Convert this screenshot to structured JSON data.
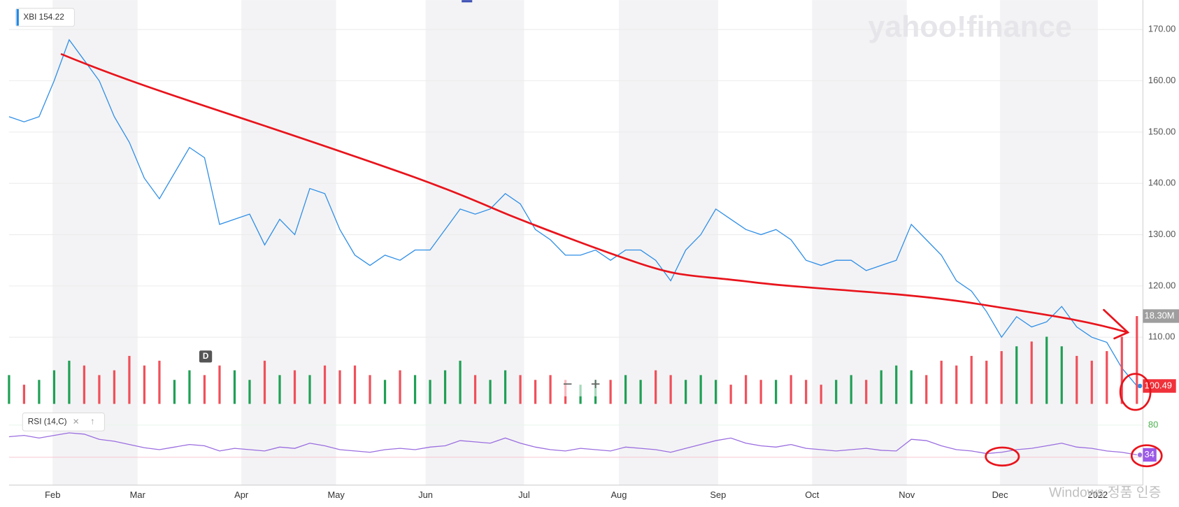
{
  "brand": "yahoo!finance",
  "os_watermark": "Windows 정품 인증",
  "controls": {
    "interval": "D",
    "zoom_out": "−",
    "zoom_in": "+"
  },
  "chart_data": [
    {
      "type": "line",
      "x": [
        0,
        1,
        2,
        3,
        4,
        5,
        6,
        7,
        8,
        9,
        10,
        11,
        12,
        13,
        14,
        15,
        16,
        17,
        18,
        19,
        20,
        21,
        22,
        23,
        24,
        25,
        26,
        27,
        28,
        29,
        30,
        31,
        32,
        33,
        34,
        35,
        36,
        37,
        38,
        39,
        40,
        41,
        42,
        43,
        44,
        45,
        46,
        47,
        48,
        49,
        50,
        51,
        52,
        53,
        54,
        55,
        56,
        57,
        58,
        59,
        60,
        61,
        62,
        63,
        64,
        65,
        66,
        67,
        68,
        69,
        70,
        71,
        72,
        73,
        74,
        75
      ],
      "series": [
        {
          "name": "XBI 154.22",
          "color": "#2e8ee6",
          "values": [
            153,
            152,
            153,
            160,
            168,
            164,
            160,
            153,
            148,
            141,
            137,
            142,
            147,
            145,
            132,
            133,
            134,
            128,
            133,
            130,
            139,
            138,
            131,
            126,
            124,
            126,
            125,
            127,
            127,
            131,
            135,
            134,
            135,
            138,
            136,
            131,
            129,
            126,
            126,
            127,
            125,
            127,
            127,
            125,
            121,
            127,
            130,
            135,
            133,
            131,
            130,
            131,
            129,
            125,
            124,
            125,
            125,
            123,
            124,
            125,
            132,
            129,
            126,
            121,
            119,
            115,
            110,
            114,
            112,
            113,
            116,
            112,
            110,
            109,
            104,
            100.49
          ]
        }
      ],
      "xlim": [
        0,
        75
      ],
      "xticks": [
        {
          "value": 2.9,
          "label": "Feb"
        },
        {
          "value": 8.55,
          "label": "Mar"
        },
        {
          "value": 15.45,
          "label": "Apr"
        },
        {
          "value": 21.75,
          "label": "May"
        },
        {
          "value": 27.7,
          "label": "Jun"
        },
        {
          "value": 34.25,
          "label": "Jul"
        },
        {
          "value": 40.55,
          "label": "Aug"
        },
        {
          "value": 47.15,
          "label": "Sep"
        },
        {
          "value": 53.4,
          "label": "Oct"
        },
        {
          "value": 59.7,
          "label": "Nov"
        },
        {
          "value": 65.9,
          "label": "Dec"
        },
        {
          "value": 72.4,
          "label": "2022"
        }
      ],
      "ylim": [
        97,
        175
      ],
      "yticks": [
        {
          "value": 110,
          "label": "110.00"
        },
        {
          "value": 120,
          "label": "120.00"
        },
        {
          "value": 130,
          "label": "130.00"
        },
        {
          "value": 140,
          "label": "140.00"
        },
        {
          "value": 150,
          "label": "150.00"
        },
        {
          "value": 160,
          "label": "160.00"
        },
        {
          "value": 170,
          "label": "170.00"
        }
      ],
      "grid": true
    },
    {
      "type": "bar",
      "values": [
        6,
        4,
        5,
        7,
        9,
        8,
        6,
        7,
        10,
        8,
        9,
        5,
        7,
        6,
        8,
        7,
        5,
        9,
        6,
        7,
        6,
        8,
        7,
        8,
        6,
        5,
        7,
        6,
        5,
        7,
        9,
        6,
        5,
        7,
        6,
        5,
        6,
        5,
        4,
        5,
        5,
        6,
        5,
        7,
        6,
        5,
        6,
        5,
        4,
        6,
        5,
        5,
        6,
        5,
        4,
        5,
        6,
        5,
        7,
        8,
        7,
        6,
        9,
        8,
        10,
        9,
        11,
        12,
        13,
        14,
        12,
        10,
        9,
        11,
        14,
        18.3
      ],
      "last_value_label": "18.30M",
      "up_color": "#1fa055",
      "down_color": "#f0505a",
      "ylim": [
        0,
        21
      ]
    },
    {
      "type": "line",
      "series": [
        {
          "name": "RSI (14,C)",
          "color": "#9b6ee0",
          "values": [
            62,
            64,
            60,
            64,
            68,
            66,
            58,
            55,
            50,
            45,
            42,
            46,
            50,
            48,
            40,
            44,
            42,
            40,
            46,
            44,
            52,
            48,
            42,
            40,
            38,
            42,
            44,
            42,
            46,
            48,
            56,
            54,
            52,
            60,
            52,
            46,
            42,
            40,
            44,
            42,
            40,
            46,
            44,
            42,
            38,
            44,
            50,
            56,
            60,
            52,
            48,
            46,
            50,
            44,
            42,
            40,
            42,
            44,
            41,
            40,
            58,
            56,
            48,
            42,
            40,
            36,
            38,
            42,
            44,
            48,
            52,
            46,
            44,
            40,
            38,
            34
          ]
        }
      ],
      "ylim": [
        0,
        100
      ],
      "yticks": [
        80
      ]
    }
  ]
}
